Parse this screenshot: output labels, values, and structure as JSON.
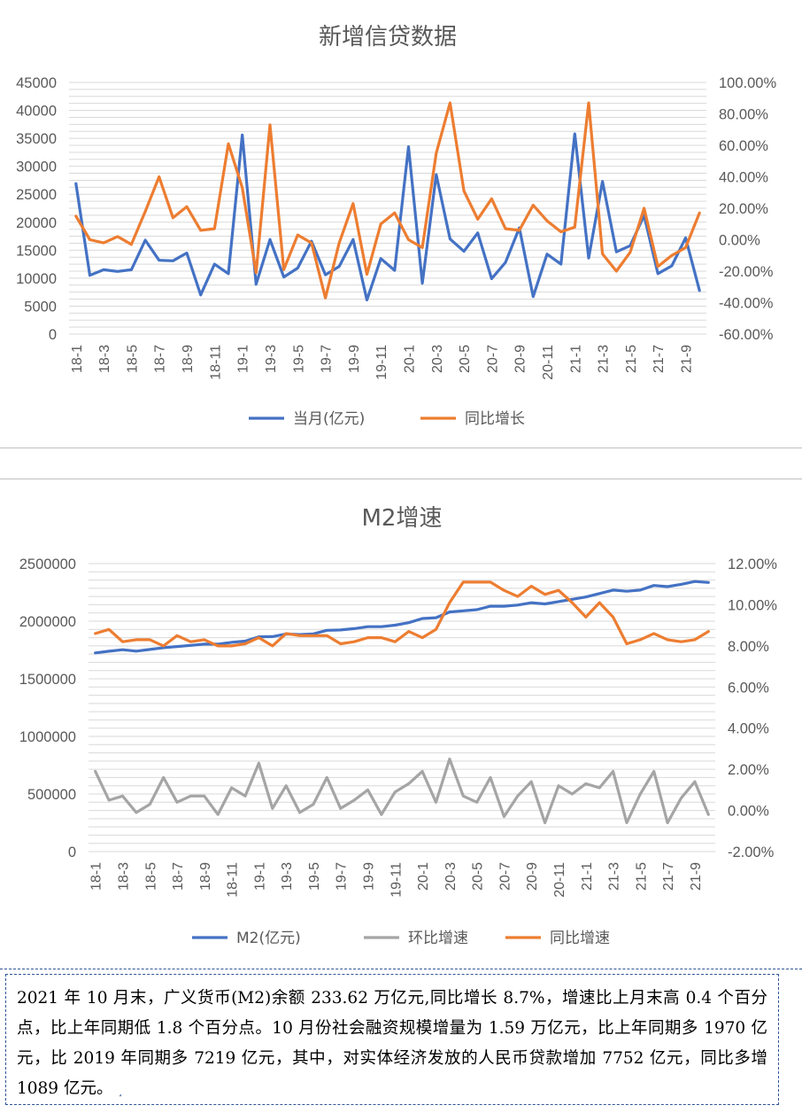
{
  "chart_data": [
    {
      "type": "line",
      "title": "新增信贷数据",
      "categories": [
        "18-1",
        "18-2",
        "18-3",
        "18-4",
        "18-5",
        "18-6",
        "18-7",
        "18-8",
        "18-9",
        "18-10",
        "18-11",
        "18-12",
        "19-1",
        "19-2",
        "19-3",
        "19-4",
        "19-5",
        "19-6",
        "19-7",
        "19-8",
        "19-9",
        "19-10",
        "19-11",
        "19-12",
        "20-1",
        "20-2",
        "20-3",
        "20-4",
        "20-5",
        "20-6",
        "20-7",
        "20-8",
        "20-9",
        "20-10",
        "20-11",
        "20-12",
        "21-1",
        "21-2",
        "21-3",
        "21-4",
        "21-5",
        "21-6",
        "21-7",
        "21-8",
        "21-9",
        "21-10"
      ],
      "x_tick_labels": [
        "18-1",
        "18-3",
        "18-5",
        "18-7",
        "18-9",
        "18-11",
        "19-1",
        "19-3",
        "19-5",
        "19-7",
        "19-9",
        "19-11",
        "20-1",
        "20-3",
        "20-5",
        "20-7",
        "20-9",
        "20-11",
        "21-1",
        "21-3",
        "21-5",
        "21-7",
        "21-9"
      ],
      "y_left": {
        "ylim": [
          0,
          45000
        ],
        "ticks": [
          "0",
          "5000",
          "10000",
          "15000",
          "20000",
          "25000",
          "30000",
          "35000",
          "40000",
          "45000"
        ]
      },
      "y_right": {
        "ylim": [
          -60,
          100
        ],
        "ticks": [
          "-60.00%",
          "-40.00%",
          "-20.00%",
          "0.00%",
          "20.00%",
          "40.00%",
          "60.00%",
          "80.00%",
          "100.00%"
        ]
      },
      "series": [
        {
          "name": "当月(亿元)",
          "axis": "left",
          "color": "#4472c4",
          "values": [
            26900,
            10500,
            11500,
            11200,
            11500,
            16800,
            13200,
            13100,
            14500,
            7000,
            12500,
            10800,
            35600,
            8900,
            16900,
            10200,
            11800,
            16600,
            10600,
            12100,
            16900,
            6100,
            13500,
            11400,
            33500,
            9100,
            28500,
            17000,
            14800,
            18100,
            9900,
            12800,
            19000,
            6700,
            14300,
            12500,
            35800,
            13600,
            27300,
            14700,
            15800,
            21200,
            10800,
            12200,
            17200,
            7800
          ]
        },
        {
          "name": "同比增长",
          "axis": "right",
          "color": "#ed7d31",
          "values": [
            15,
            0,
            -2,
            2,
            -3,
            18,
            40,
            14,
            21,
            6,
            7,
            61,
            33,
            -21,
            73,
            -19,
            3,
            -2,
            -37,
            -2,
            23,
            -22,
            10,
            17,
            0,
            -5,
            55,
            87,
            31,
            13,
            26,
            7,
            6,
            22,
            12,
            5,
            8,
            87,
            -9,
            -20,
            -8,
            20,
            -17,
            -10,
            -5,
            17
          ]
        }
      ],
      "legend": "bottom"
    },
    {
      "type": "line",
      "title": "M2增速",
      "categories": [
        "18-1",
        "18-2",
        "18-3",
        "18-4",
        "18-5",
        "18-6",
        "18-7",
        "18-8",
        "18-9",
        "18-10",
        "18-11",
        "18-12",
        "19-1",
        "19-2",
        "19-3",
        "19-4",
        "19-5",
        "19-6",
        "19-7",
        "19-8",
        "19-9",
        "19-10",
        "19-11",
        "19-12",
        "20-1",
        "20-2",
        "20-3",
        "20-4",
        "20-5",
        "20-6",
        "20-7",
        "20-8",
        "20-9",
        "20-10",
        "20-11",
        "20-12",
        "21-1",
        "21-2",
        "21-3",
        "21-4",
        "21-5",
        "21-6",
        "21-7",
        "21-8",
        "21-9",
        "21-10"
      ],
      "x_tick_labels": [
        "18-1",
        "18-3",
        "18-5",
        "18-7",
        "18-9",
        "18-11",
        "19-1",
        "19-3",
        "19-5",
        "19-7",
        "19-9",
        "19-11",
        "20-1",
        "20-3",
        "20-5",
        "20-7",
        "20-9",
        "20-11",
        "21-1",
        "21-3",
        "21-5",
        "21-7",
        "21-9"
      ],
      "y_left": {
        "ylim": [
          0,
          2500000
        ],
        "ticks": [
          "0",
          "500000",
          "1000000",
          "1500000",
          "2000000",
          "2500000"
        ]
      },
      "y_right": {
        "ylim": [
          -2,
          12
        ],
        "ticks": [
          "-2.00%",
          "0.00%",
          "2.00%",
          "4.00%",
          "6.00%",
          "8.00%",
          "10.00%",
          "12.00%"
        ]
      },
      "series": [
        {
          "name": "M2(亿元)",
          "axis": "left",
          "color": "#4472c4",
          "values": [
            1725000,
            1739000,
            1752000,
            1740000,
            1755000,
            1770000,
            1780000,
            1790000,
            1801000,
            1801000,
            1816000,
            1827000,
            1865000,
            1866000,
            1889000,
            1884000,
            1890000,
            1921000,
            1924000,
            1935000,
            1952000,
            1952000,
            1965000,
            1987000,
            2023000,
            2030000,
            2080000,
            2090000,
            2100000,
            2130000,
            2130000,
            2140000,
            2160000,
            2150000,
            2170000,
            2190000,
            2210000,
            2240000,
            2270000,
            2260000,
            2270000,
            2310000,
            2300000,
            2320000,
            2345000,
            2336000
          ]
        },
        {
          "name": "环比增速",
          "axis": "right",
          "color": "#a5a5a5",
          "values": [
            1.9,
            0.5,
            0.7,
            -0.1,
            0.3,
            1.6,
            0.4,
            0.7,
            0.7,
            -0.2,
            1.1,
            0.7,
            2.3,
            0.1,
            1.2,
            -0.1,
            0.3,
            1.6,
            0.1,
            0.5,
            1.0,
            -0.2,
            0.9,
            1.3,
            1.9,
            0.4,
            2.5,
            0.7,
            0.4,
            1.6,
            -0.3,
            0.7,
            1.4,
            -0.6,
            1.2,
            0.8,
            1.3,
            1.1,
            1.9,
            -0.6,
            0.8,
            1.9,
            -0.6,
            0.6,
            1.4,
            -0.2
          ]
        },
        {
          "name": "同比增速",
          "axis": "right",
          "color": "#ed7d31",
          "values": [
            8.6,
            8.8,
            8.2,
            8.3,
            8.3,
            8.0,
            8.5,
            8.2,
            8.3,
            8.0,
            8.0,
            8.1,
            8.4,
            8.0,
            8.6,
            8.5,
            8.5,
            8.5,
            8.1,
            8.2,
            8.4,
            8.4,
            8.2,
            8.7,
            8.4,
            8.8,
            10.1,
            11.1,
            11.1,
            11.1,
            10.7,
            10.4,
            10.9,
            10.5,
            10.7,
            10.1,
            9.4,
            10.1,
            9.4,
            8.1,
            8.3,
            8.6,
            8.3,
            8.2,
            8.3,
            8.7
          ]
        }
      ],
      "legend": "bottom"
    }
  ],
  "text_box": {
    "paragraph": "2021 年 10 月末，广义货币(M2)余额 233.62 万亿元,同比增长 8.7%，增速比上月末高 0.4 个百分点，比上年同期低 1.8 个百分点。10 月份社会融资规模增量为 1.59 万亿元，比上年同期多 1970 亿元，比 2019 年同期多 7219 亿元，其中，对实体经济发放的人民币贷款增加 7752 亿元，同比多增 1089 亿元。",
    "end_mark": "˼"
  }
}
